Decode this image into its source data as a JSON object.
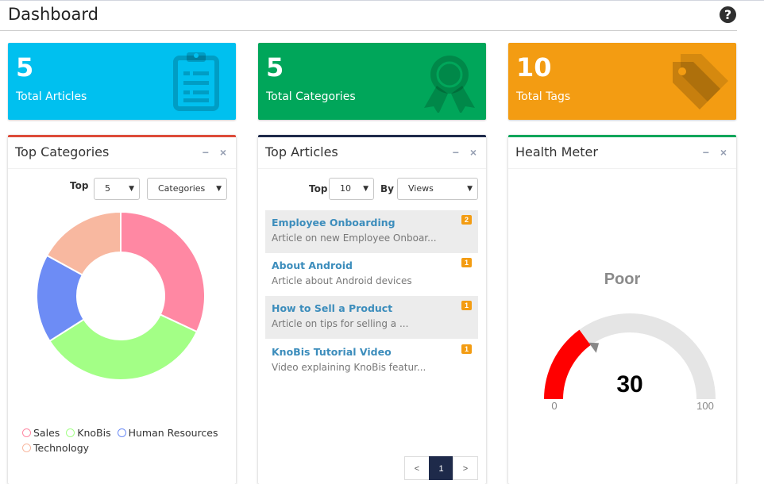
{
  "header": {
    "title": "Dashboard",
    "help_icon": "question-circle-icon"
  },
  "stats": [
    {
      "value": "5",
      "label": "Total Articles",
      "color": "#00c0ef",
      "icon": "clipboard-icon"
    },
    {
      "value": "5",
      "label": "Total Categories",
      "color": "#00a65a",
      "icon": "award-ribbon-icon"
    },
    {
      "value": "10",
      "label": "Total Tags",
      "color": "#f39c12",
      "icon": "tags-icon"
    }
  ],
  "top_categories": {
    "title": "Top Categories",
    "top_label": "Top",
    "top_value": "5",
    "type_value": "Categories",
    "chart": {
      "type": "doughnut",
      "slices": [
        {
          "name": "Sales",
          "percent": 32,
          "color": "#ff88a3"
        },
        {
          "name": "KnoBis",
          "percent": 34,
          "color": "#a3ff86"
        },
        {
          "name": "Human Resources",
          "percent": 17,
          "color": "#6d8cf5"
        },
        {
          "name": "Technology",
          "percent": 17,
          "color": "#f8b8a0"
        }
      ]
    }
  },
  "top_articles": {
    "title": "Top Articles",
    "top_label": "Top",
    "top_value": "10",
    "by_label": "By",
    "by_value": "Views",
    "items": [
      {
        "title": "Employee Onboarding",
        "desc": "Article on new Employee Onboar...",
        "count": "2"
      },
      {
        "title": "About Android",
        "desc": "Article about Android devices",
        "count": "1"
      },
      {
        "title": "How to Sell a Product",
        "desc": "Article on tips for selling a ...",
        "count": "1"
      },
      {
        "title": "KnoBis Tutorial Video",
        "desc": "Video explaining KnoBis featur...",
        "count": "1"
      }
    ],
    "pager": {
      "prev": "<",
      "current": "1",
      "next": ">"
    }
  },
  "health_meter": {
    "title": "Health Meter",
    "status": "Poor",
    "value": 30,
    "value_text": "30",
    "min_text": "0",
    "max_text": "100",
    "fill_color": "#ff0000",
    "track_color": "#e5e5e5"
  },
  "box_tools": {
    "minimize": "−",
    "close": "×"
  }
}
